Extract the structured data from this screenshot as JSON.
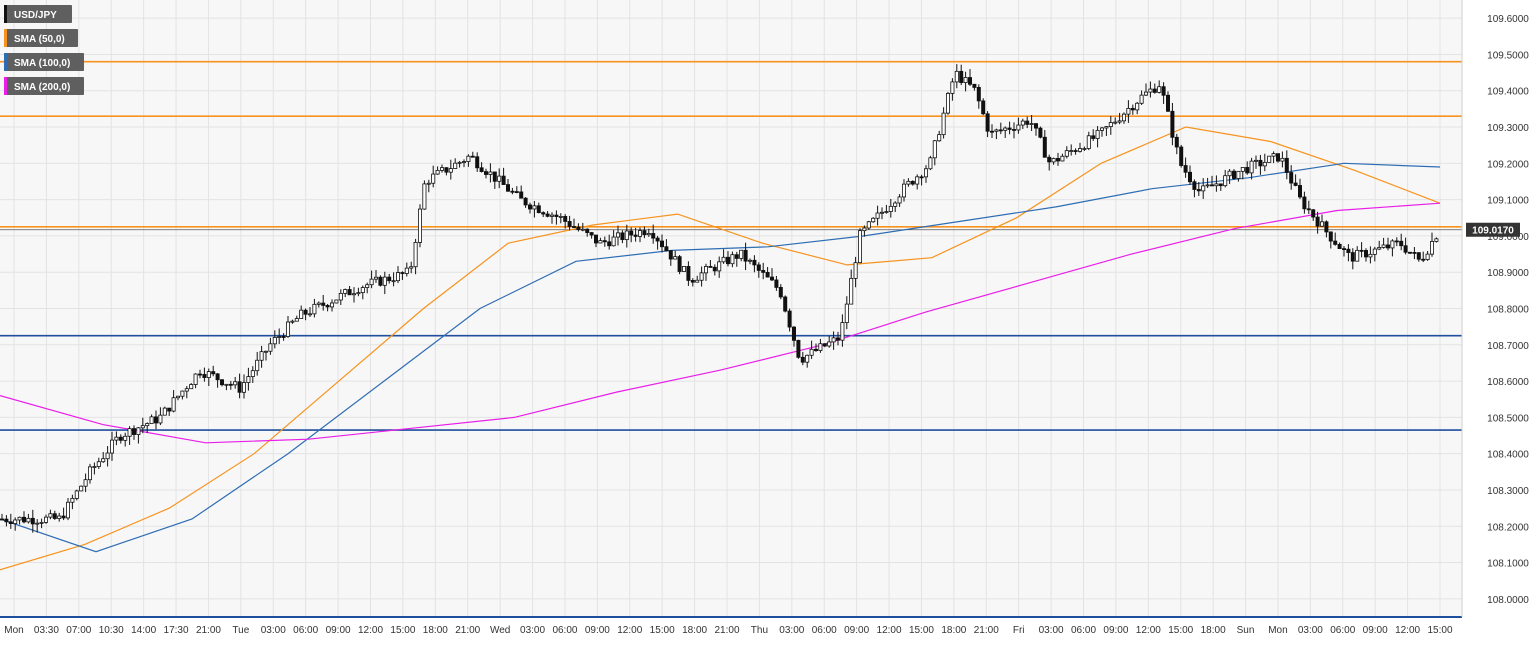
{
  "legend": [
    {
      "label": "USD/JPY",
      "color": "#111111"
    },
    {
      "label": "SMA (50,0)",
      "color": "#f7931e"
    },
    {
      "label": "SMA (100,0)",
      "color": "#2e6db4"
    },
    {
      "label": "SMA (200,0)",
      "color": "#e91ee9"
    }
  ],
  "current_price_label": "109.0170",
  "chart_data": {
    "type": "candlestick",
    "symbol": "USD/JPY",
    "ylim": [
      107.95,
      109.65
    ],
    "y_ticks": [
      "108.0000",
      "108.1000",
      "108.2000",
      "108.3000",
      "108.4000",
      "108.5000",
      "108.6000",
      "108.7000",
      "108.8000",
      "108.9000",
      "109.0000",
      "109.1000",
      "109.2000",
      "109.3000",
      "109.4000",
      "109.5000",
      "109.6000"
    ],
    "x_ticks": [
      "Mon",
      "03:30",
      "07:00",
      "10:30",
      "14:00",
      "17:30",
      "21:00",
      "Tue",
      "03:00",
      "06:00",
      "09:00",
      "12:00",
      "15:00",
      "18:00",
      "21:00",
      "Wed",
      "03:00",
      "06:00",
      "09:00",
      "12:00",
      "15:00",
      "18:00",
      "21:00",
      "Thu",
      "03:00",
      "06:00",
      "09:00",
      "12:00",
      "15:00",
      "18:00",
      "21:00",
      "Fri",
      "03:00",
      "06:00",
      "09:00",
      "12:00",
      "15:00",
      "18:00",
      "Sun",
      "Mon",
      "03:00",
      "06:00",
      "09:00",
      "12:00",
      "15:00"
    ],
    "horizontal_levels": [
      {
        "value": 109.48,
        "color": "#f7931e"
      },
      {
        "value": 109.33,
        "color": "#f7931e"
      },
      {
        "value": 109.025,
        "color": "#f7931e"
      },
      {
        "value": 108.725,
        "color": "#1f4e9c"
      },
      {
        "value": 108.465,
        "color": "#1f4e9c"
      }
    ],
    "current_price": 109.017,
    "series": [
      {
        "name": "SMA (50,0)",
        "color": "#f7931e",
        "values": [
          108.08,
          108.15,
          108.25,
          108.4,
          108.6,
          108.8,
          108.98,
          109.03,
          109.06,
          108.98,
          108.92,
          108.94,
          109.05,
          109.2,
          109.3,
          109.26,
          109.18,
          109.09
        ]
      },
      {
        "name": "SMA (100,0)",
        "color": "#2e6db4",
        "values": [
          108.22,
          108.13,
          108.22,
          108.4,
          108.6,
          108.8,
          108.93,
          108.96,
          108.97,
          109.0,
          109.04,
          109.08,
          109.13,
          109.16,
          109.2,
          109.19
        ]
      },
      {
        "name": "SMA (200,0)",
        "color": "#e91ee9",
        "values": [
          108.56,
          108.48,
          108.43,
          108.44,
          108.47,
          108.5,
          108.57,
          108.63,
          108.7,
          108.79,
          108.87,
          108.95,
          109.02,
          109.07,
          109.09
        ]
      }
    ]
  }
}
